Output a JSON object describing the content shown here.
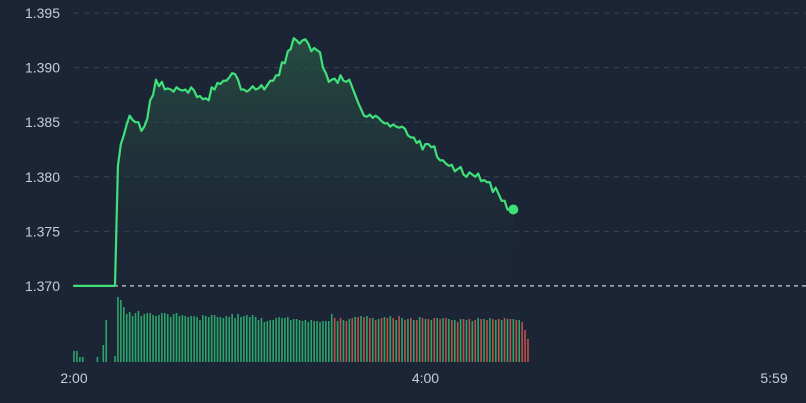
{
  "colors": {
    "background": "#1c2535",
    "grid": "#3a4458",
    "baseline": "#c8ccd4",
    "price_line": "#3fe07a",
    "area_top": "#2a5a45",
    "volume_up": "#2aa56a",
    "volume_down": "#c0504a",
    "label": "#c8ccd4"
  },
  "chart_data": {
    "type": "line",
    "title": "",
    "xlabel": "",
    "ylabel": "",
    "baseline_value": 1.37,
    "ylim": [
      1.3655,
      1.3962
    ],
    "y_ticks": [
      "1.395",
      "1.390",
      "1.385",
      "1.380",
      "1.375",
      "1.370"
    ],
    "x_range_min": [
      0,
      239
    ],
    "x_ticks": [
      {
        "label": "2:00",
        "min": 0
      },
      {
        "label": "4:00",
        "min": 120
      },
      {
        "label": "5:59",
        "min": 239
      }
    ],
    "grid": "horizontal dashed",
    "series": [
      {
        "values": [
          [
            0,
            1.37
          ],
          [
            14,
            1.37
          ],
          [
            15,
            1.381
          ],
          [
            16,
            1.383
          ],
          [
            17,
            1.3838
          ],
          [
            18,
            1.3848
          ],
          [
            19,
            1.3856
          ],
          [
            20,
            1.3852
          ],
          [
            21,
            1.385
          ],
          [
            22,
            1.385
          ],
          [
            23,
            1.3842
          ],
          [
            24,
            1.3846
          ],
          [
            25,
            1.3853
          ],
          [
            26,
            1.387
          ],
          [
            27,
            1.3875
          ],
          [
            28,
            1.3889
          ],
          [
            29,
            1.3883
          ],
          [
            30,
            1.3887
          ],
          [
            31,
            1.388
          ],
          [
            32,
            1.3881
          ],
          [
            33,
            1.388
          ],
          [
            34,
            1.3878
          ],
          [
            35,
            1.3882
          ],
          [
            36,
            1.388
          ],
          [
            37,
            1.3879
          ],
          [
            38,
            1.388
          ],
          [
            39,
            1.3877
          ],
          [
            40,
            1.3882
          ],
          [
            41,
            1.3879
          ],
          [
            42,
            1.3873
          ],
          [
            43,
            1.3874
          ],
          [
            44,
            1.3871
          ],
          [
            45,
            1.3872
          ],
          [
            46,
            1.387
          ],
          [
            47,
            1.3882
          ],
          [
            48,
            1.388
          ],
          [
            49,
            1.3886
          ],
          [
            50,
            1.3885
          ],
          [
            51,
            1.3888
          ],
          [
            52,
            1.3888
          ],
          [
            53,
            1.3891
          ],
          [
            54,
            1.3895
          ],
          [
            55,
            1.3894
          ],
          [
            56,
            1.3889
          ],
          [
            57,
            1.388
          ],
          [
            58,
            1.388
          ],
          [
            59,
            1.3878
          ],
          [
            60,
            1.388
          ],
          [
            61,
            1.3883
          ],
          [
            62,
            1.388
          ],
          [
            63,
            1.3881
          ],
          [
            64,
            1.3884
          ],
          [
            65,
            1.388
          ],
          [
            66,
            1.3884
          ],
          [
            67,
            1.3888
          ],
          [
            68,
            1.3888
          ],
          [
            69,
            1.3893
          ],
          [
            70,
            1.3893
          ],
          [
            71,
            1.3905
          ],
          [
            72,
            1.3904
          ],
          [
            73,
            1.3915
          ],
          [
            74,
            1.3917
          ],
          [
            75,
            1.3927
          ],
          [
            76,
            1.3925
          ],
          [
            77,
            1.3922
          ],
          [
            78,
            1.3925
          ],
          [
            79,
            1.3926
          ],
          [
            80,
            1.3922
          ],
          [
            81,
            1.3915
          ],
          [
            82,
            1.3918
          ],
          [
            83,
            1.3916
          ],
          [
            84,
            1.3914
          ],
          [
            85,
            1.39
          ],
          [
            86,
            1.3895
          ],
          [
            87,
            1.3887
          ],
          [
            88,
            1.3889
          ],
          [
            89,
            1.389
          ],
          [
            90,
            1.3886
          ],
          [
            91,
            1.3893
          ],
          [
            92,
            1.3888
          ],
          [
            93,
            1.3887
          ],
          [
            94,
            1.3889
          ],
          [
            95,
            1.3882
          ],
          [
            96,
            1.3875
          ],
          [
            97,
            1.3868
          ],
          [
            98,
            1.3862
          ],
          [
            99,
            1.3856
          ],
          [
            100,
            1.3855
          ],
          [
            101,
            1.3857
          ],
          [
            102,
            1.3854
          ],
          [
            103,
            1.3856
          ],
          [
            104,
            1.3854
          ],
          [
            105,
            1.3851
          ],
          [
            106,
            1.3849
          ],
          [
            107,
            1.3849
          ],
          [
            108,
            1.3846
          ],
          [
            109,
            1.3848
          ],
          [
            110,
            1.3846
          ],
          [
            111,
            1.3845
          ],
          [
            112,
            1.3846
          ],
          [
            113,
            1.3844
          ],
          [
            114,
            1.3838
          ],
          [
            115,
            1.3836
          ],
          [
            116,
            1.3836
          ],
          [
            117,
            1.3831
          ],
          [
            118,
            1.3833
          ],
          [
            119,
            1.3825
          ],
          [
            120,
            1.383
          ],
          [
            121,
            1.383
          ],
          [
            122,
            1.3827
          ],
          [
            123,
            1.3828
          ],
          [
            124,
            1.3818
          ],
          [
            125,
            1.3815
          ],
          [
            126,
            1.3815
          ],
          [
            127,
            1.3812
          ],
          [
            128,
            1.381
          ],
          [
            129,
            1.3811
          ],
          [
            130,
            1.3805
          ],
          [
            131,
            1.3807
          ],
          [
            132,
            1.3809
          ],
          [
            133,
            1.3802
          ],
          [
            134,
            1.38
          ],
          [
            135,
            1.3804
          ],
          [
            136,
            1.3802
          ],
          [
            137,
            1.38
          ],
          [
            138,
            1.3803
          ],
          [
            139,
            1.3796
          ],
          [
            140,
            1.3797
          ],
          [
            141,
            1.3795
          ],
          [
            142,
            1.3795
          ],
          [
            143,
            1.3786
          ],
          [
            144,
            1.379
          ],
          [
            145,
            1.3784
          ],
          [
            146,
            1.3778
          ],
          [
            147,
            1.3778
          ],
          [
            148,
            1.377
          ],
          [
            149,
            1.377
          ],
          [
            150,
            1.377
          ]
        ]
      }
    ],
    "volume": {
      "up": [
        [
          0,
          11
        ],
        [
          1,
          11
        ],
        [
          2,
          5
        ],
        [
          3,
          5
        ],
        [
          8,
          5
        ],
        [
          10,
          17
        ],
        [
          11,
          42
        ],
        [
          14,
          6
        ],
        [
          15,
          65
        ],
        [
          16,
          62
        ],
        [
          17,
          55
        ],
        [
          18,
          48
        ],
        [
          19,
          50
        ],
        [
          20,
          46
        ],
        [
          21,
          49
        ],
        [
          22,
          51
        ],
        [
          23,
          46
        ],
        [
          24,
          48
        ],
        [
          25,
          49
        ],
        [
          26,
          49
        ],
        [
          27,
          47
        ],
        [
          28,
          46
        ],
        [
          29,
          47
        ],
        [
          30,
          49
        ],
        [
          31,
          49
        ],
        [
          32,
          48
        ],
        [
          33,
          45
        ],
        [
          34,
          48
        ],
        [
          35,
          49
        ],
        [
          36,
          46
        ],
        [
          37,
          47
        ],
        [
          38,
          46
        ],
        [
          39,
          45
        ],
        [
          40,
          46
        ],
        [
          41,
          46
        ],
        [
          42,
          45
        ],
        [
          43,
          42
        ],
        [
          44,
          47
        ],
        [
          45,
          46
        ],
        [
          46,
          45
        ],
        [
          47,
          47
        ],
        [
          48,
          47
        ],
        [
          49,
          45
        ],
        [
          50,
          45
        ],
        [
          51,
          44
        ],
        [
          52,
          46
        ],
        [
          53,
          45
        ],
        [
          54,
          48
        ],
        [
          55,
          44
        ],
        [
          56,
          48
        ],
        [
          57,
          45
        ],
        [
          58,
          46
        ],
        [
          59,
          47
        ],
        [
          60,
          45
        ],
        [
          61,
          47
        ],
        [
          62,
          45
        ],
        [
          63,
          42
        ],
        [
          64,
          44
        ],
        [
          65,
          40
        ],
        [
          66,
          41
        ],
        [
          67,
          42
        ],
        [
          68,
          42
        ],
        [
          69,
          44
        ],
        [
          70,
          45
        ],
        [
          71,
          44
        ],
        [
          72,
          44
        ],
        [
          73,
          45
        ],
        [
          74,
          42
        ],
        [
          75,
          43
        ],
        [
          76,
          43
        ],
        [
          77,
          42
        ],
        [
          78,
          41
        ],
        [
          79,
          42
        ],
        [
          80,
          40
        ],
        [
          81,
          42
        ],
        [
          82,
          41
        ],
        [
          83,
          41
        ],
        [
          84,
          40
        ],
        [
          85,
          41
        ],
        [
          86,
          41
        ],
        [
          87,
          41
        ],
        [
          88,
          48
        ],
        [
          90,
          41
        ],
        [
          92,
          42
        ],
        [
          94,
          43
        ],
        [
          96,
          45
        ],
        [
          98,
          46
        ],
        [
          100,
          46
        ],
        [
          102,
          44
        ],
        [
          104,
          43
        ],
        [
          106,
          45
        ],
        [
          108,
          46
        ],
        [
          110,
          42
        ],
        [
          112,
          44
        ],
        [
          114,
          43
        ],
        [
          116,
          42
        ],
        [
          118,
          45
        ],
        [
          120,
          43
        ],
        [
          122,
          42
        ],
        [
          124,
          44
        ],
        [
          126,
          44
        ],
        [
          128,
          43
        ],
        [
          130,
          42
        ],
        [
          132,
          43
        ],
        [
          134,
          42
        ],
        [
          136,
          41
        ],
        [
          138,
          44
        ],
        [
          140,
          43
        ],
        [
          142,
          44
        ],
        [
          144,
          42
        ],
        [
          146,
          42
        ],
        [
          148,
          43
        ],
        [
          150,
          43
        ],
        [
          152,
          42
        ]
      ],
      "down": [
        [
          89,
          44
        ],
        [
          91,
          44
        ],
        [
          93,
          41
        ],
        [
          95,
          44
        ],
        [
          97,
          45
        ],
        [
          99,
          45
        ],
        [
          101,
          44
        ],
        [
          103,
          42
        ],
        [
          105,
          44
        ],
        [
          107,
          44
        ],
        [
          109,
          44
        ],
        [
          111,
          46
        ],
        [
          113,
          42
        ],
        [
          115,
          44
        ],
        [
          117,
          42
        ],
        [
          119,
          44
        ],
        [
          121,
          43
        ],
        [
          123,
          44
        ],
        [
          125,
          43
        ],
        [
          127,
          44
        ],
        [
          129,
          42
        ],
        [
          131,
          40
        ],
        [
          133,
          43
        ],
        [
          135,
          43
        ],
        [
          137,
          42
        ],
        [
          139,
          43
        ],
        [
          141,
          42
        ],
        [
          143,
          43
        ],
        [
          145,
          43
        ],
        [
          147,
          44
        ],
        [
          149,
          43
        ],
        [
          151,
          42
        ],
        [
          153,
          40
        ],
        [
          154,
          32
        ],
        [
          155,
          23
        ]
      ]
    }
  }
}
